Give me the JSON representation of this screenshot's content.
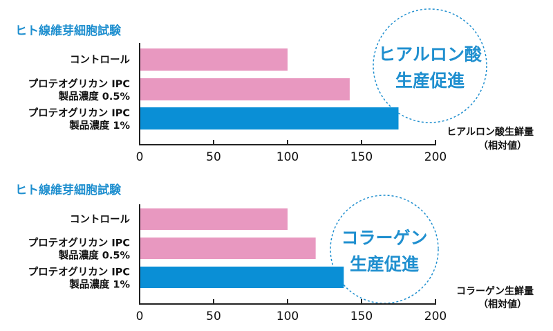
{
  "colors": {
    "pink": "#e898c0",
    "blue": "#0a8fd6",
    "title": "#1f8fcf",
    "badge_border": "#1f8fcf"
  },
  "chart_data": [
    {
      "type": "bar",
      "orientation": "horizontal",
      "title": "ヒト線維芽細胞試験",
      "categories": [
        [
          "コントロール"
        ],
        [
          "プロテオグリカン IPC",
          "製品濃度 0.5%"
        ],
        [
          "プロテオグリカン IPC",
          "製品濃度 1%"
        ]
      ],
      "values": [
        100,
        142,
        175
      ],
      "bar_colors": [
        "pink",
        "pink",
        "blue"
      ],
      "xlim": [
        0,
        200
      ],
      "xticks": [
        0,
        50,
        100,
        150,
        200
      ],
      "unit_label": [
        "ヒアルロン酸生鮮量",
        "（相対値）"
      ],
      "badge": [
        "ヒアルロン酸",
        "生産促進"
      ],
      "grid": false
    },
    {
      "type": "bar",
      "orientation": "horizontal",
      "title": "ヒト線維芽細胞試験",
      "categories": [
        [
          "コントロール"
        ],
        [
          "プロテオグリカン IPC",
          "製品濃度 0.5%"
        ],
        [
          "プロテオグリカン IPC",
          "製品濃度 1%"
        ]
      ],
      "values": [
        100,
        119,
        138
      ],
      "bar_colors": [
        "pink",
        "pink",
        "blue"
      ],
      "xlim": [
        0,
        200
      ],
      "xticks": [
        0,
        50,
        100,
        150,
        200
      ],
      "unit_label": [
        "コラーゲン生鮮量",
        "（相対値）"
      ],
      "badge": [
        "コラーゲン",
        "生産促進"
      ],
      "grid": false
    }
  ]
}
